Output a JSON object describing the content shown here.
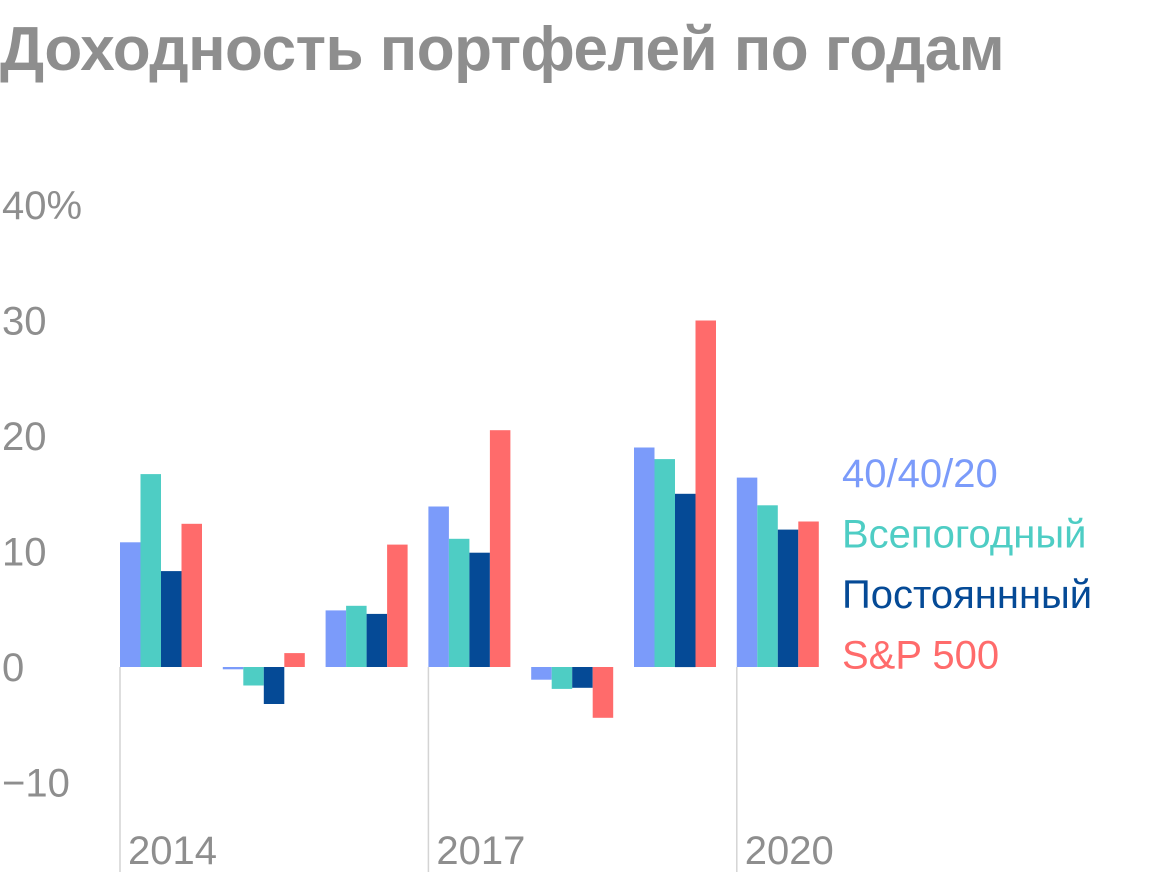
{
  "chart_data": {
    "type": "bar",
    "title": "Доходность портфелей по годам",
    "xlabel": "",
    "ylabel": "",
    "categories": [
      "2014",
      "2015",
      "2016",
      "2017",
      "2018",
      "2019",
      "2020"
    ],
    "x_tick_labels": [
      {
        "category": "2014",
        "label": "2014"
      },
      {
        "category": "2017",
        "label": "2017"
      },
      {
        "category": "2020",
        "label": "2020"
      }
    ],
    "y_ticks": [
      {
        "value": 40,
        "label": "40%"
      },
      {
        "value": 30,
        "label": "30"
      },
      {
        "value": 20,
        "label": "20"
      },
      {
        "value": 10,
        "label": "10"
      },
      {
        "value": 0,
        "label": "0"
      },
      {
        "value": -10,
        "label": "−10"
      }
    ],
    "ylim": [
      -15,
      40
    ],
    "grid": false,
    "legend_position": "right",
    "series": [
      {
        "name": "40/40/20",
        "color": "#7b9bfa",
        "values": [
          10.8,
          -0.2,
          4.9,
          13.9,
          -1.1,
          19.0,
          16.4
        ]
      },
      {
        "name": "Всепогодный",
        "color": "#4ecdc4",
        "values": [
          16.7,
          -1.6,
          5.3,
          11.1,
          -1.9,
          18.0,
          14.0
        ]
      },
      {
        "name": "Постояннный",
        "color": "#054a96",
        "values": [
          8.3,
          -3.2,
          4.6,
          9.9,
          -1.8,
          15.0,
          11.9
        ]
      },
      {
        "name": "S&P 500",
        "color": "#ff6b6b",
        "values": [
          12.4,
          1.2,
          10.6,
          20.5,
          -4.4,
          30.0,
          12.6
        ]
      }
    ]
  }
}
